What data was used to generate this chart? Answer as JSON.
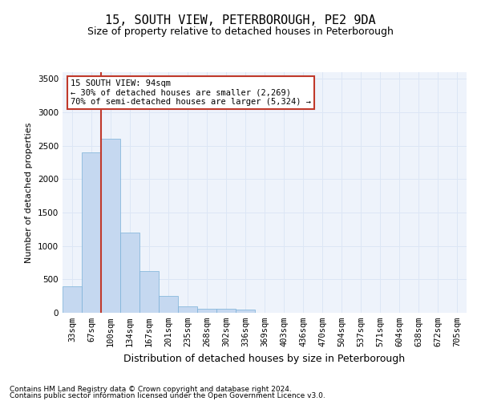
{
  "title1": "15, SOUTH VIEW, PETERBOROUGH, PE2 9DA",
  "title2": "Size of property relative to detached houses in Peterborough",
  "xlabel": "Distribution of detached houses by size in Peterborough",
  "ylabel": "Number of detached properties",
  "categories": [
    "33sqm",
    "67sqm",
    "100sqm",
    "134sqm",
    "167sqm",
    "201sqm",
    "235sqm",
    "268sqm",
    "302sqm",
    "336sqm",
    "369sqm",
    "403sqm",
    "436sqm",
    "470sqm",
    "504sqm",
    "537sqm",
    "571sqm",
    "604sqm",
    "638sqm",
    "672sqm",
    "705sqm"
  ],
  "values": [
    400,
    2400,
    2600,
    1200,
    620,
    250,
    100,
    60,
    60,
    50,
    5,
    0,
    0,
    0,
    0,
    0,
    0,
    0,
    0,
    0,
    0
  ],
  "bar_color": "#c5d8f0",
  "bar_edge_color": "#7ab0d8",
  "vline_color": "#c0392b",
  "annotation_text": "15 SOUTH VIEW: 94sqm\n← 30% of detached houses are smaller (2,269)\n70% of semi-detached houses are larger (5,324) →",
  "annotation_box_color": "white",
  "annotation_box_edge": "#c0392b",
  "ylim": [
    0,
    3600
  ],
  "yticks": [
    0,
    500,
    1000,
    1500,
    2000,
    2500,
    3000,
    3500
  ],
  "footer1": "Contains HM Land Registry data © Crown copyright and database right 2024.",
  "footer2": "Contains public sector information licensed under the Open Government Licence v3.0.",
  "grid_color": "#dce6f5",
  "bg_color": "#eef3fb",
  "title1_fontsize": 11,
  "title2_fontsize": 9,
  "ylabel_fontsize": 8,
  "xlabel_fontsize": 9,
  "tick_fontsize": 7.5,
  "footer_fontsize": 6.5,
  "annotation_fontsize": 7.5
}
